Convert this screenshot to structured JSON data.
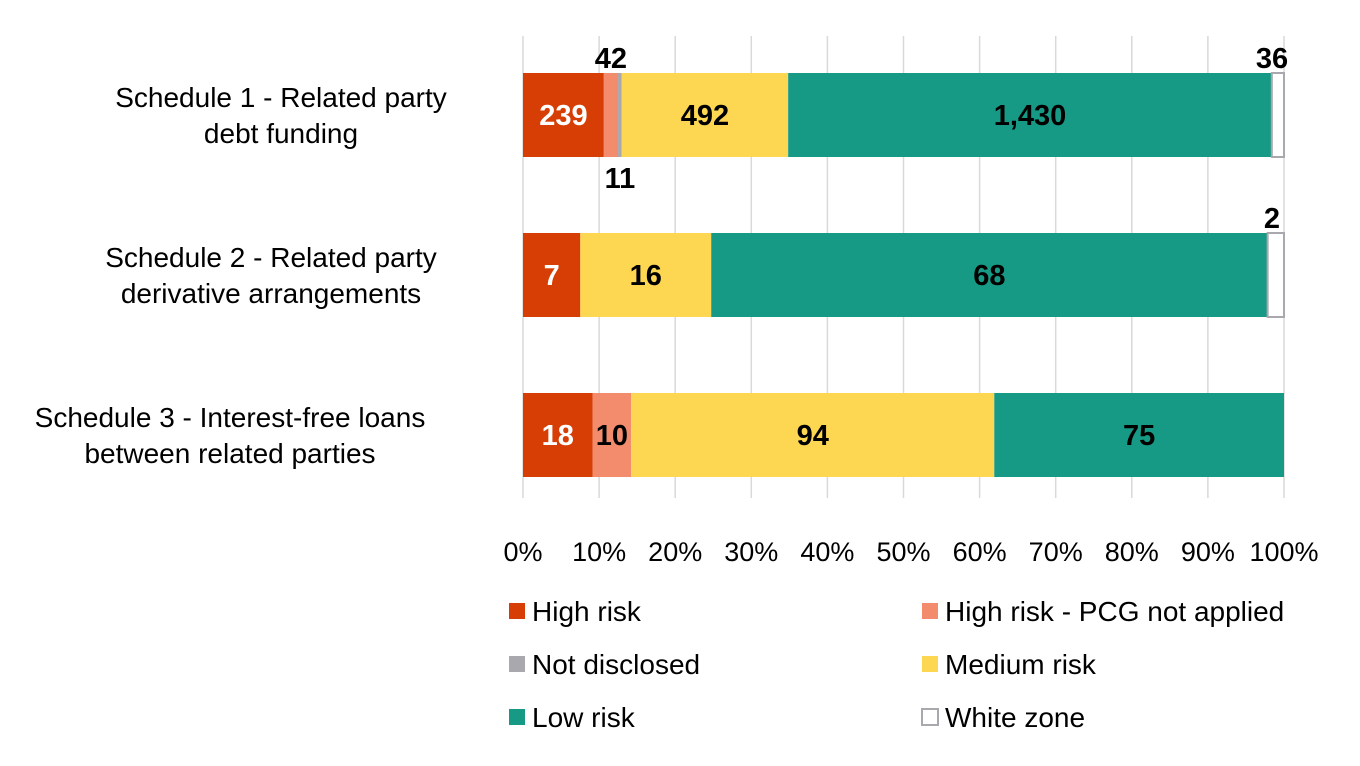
{
  "chart_data": {
    "type": "bar",
    "orientation": "horizontal",
    "stacked": "percent",
    "categories": [
      "Schedule 1 - Related party debt funding",
      "Schedule 2 - Related party derivative arrangements",
      "Schedule 3 - Interest-free loans between related parties"
    ],
    "category_lines": [
      [
        "Schedule 1 - Related party",
        "debt funding"
      ],
      [
        "Schedule 2 - Related party",
        "derivative arrangements"
      ],
      [
        "Schedule 3 - Interest-free loans",
        "between related parties"
      ]
    ],
    "series": [
      {
        "name": "High risk",
        "color": "#d63e05",
        "label_color": "#ffffff",
        "values": [
          239,
          7,
          18
        ],
        "labels": [
          "239",
          "7",
          "18"
        ]
      },
      {
        "name": "High risk - PCG not applied",
        "color": "#f38c6c",
        "label_color": "#000000",
        "values": [
          42,
          0,
          10
        ],
        "labels": [
          "42",
          "",
          "10"
        ]
      },
      {
        "name": "Not disclosed",
        "color": "#a9a8ae",
        "label_color": "#000000",
        "values": [
          11,
          0,
          0
        ],
        "labels": [
          "11",
          "",
          ""
        ]
      },
      {
        "name": "Medium risk",
        "color": "#fdd652",
        "label_color": "#000000",
        "values": [
          492,
          16,
          94
        ],
        "labels": [
          "492",
          "16",
          "94"
        ]
      },
      {
        "name": "Low risk",
        "color": "#169a85",
        "label_color": "#000000",
        "values": [
          1430,
          68,
          75
        ],
        "labels": [
          "1,430",
          "68",
          "75"
        ]
      },
      {
        "name": "White zone",
        "color": "#ffffff",
        "label_color": "#000000",
        "values": [
          36,
          2,
          0
        ],
        "labels": [
          "36",
          "2",
          ""
        ]
      }
    ],
    "x_ticks": [
      "0%",
      "10%",
      "20%",
      "30%",
      "40%",
      "50%",
      "60%",
      "70%",
      "80%",
      "90%",
      "100%"
    ],
    "xlim": [
      0,
      100
    ],
    "grid": true,
    "legend_position": "bottom"
  }
}
